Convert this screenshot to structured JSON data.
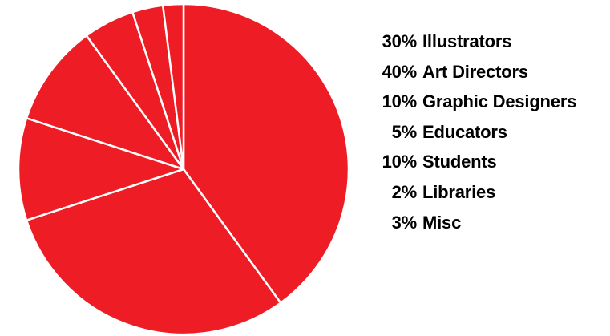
{
  "chart_data": {
    "type": "pie",
    "title": "",
    "legend_position": "right",
    "slice_color": "#ee1c25",
    "separator_color": "#ffffff",
    "background_color": "#ffffff",
    "text_color": "#000000",
    "start_angle_deg": 0,
    "direction": "clockwise",
    "slices": [
      {
        "label": "Art Directors",
        "percent_label": "40%",
        "value": 40
      },
      {
        "label": "Illustrators",
        "percent_label": "30%",
        "value": 30
      },
      {
        "label": "Graphic Designers",
        "percent_label": "10%",
        "value": 10
      },
      {
        "label": "Students",
        "percent_label": "10%",
        "value": 10
      },
      {
        "label": "Educators",
        "percent_label": "5%",
        "value": 5
      },
      {
        "label": "Misc",
        "percent_label": "3%",
        "value": 3
      },
      {
        "label": "Libraries",
        "percent_label": "2%",
        "value": 2
      }
    ],
    "legend": [
      {
        "percent": "30%",
        "label": "Illustrators"
      },
      {
        "percent": "40%",
        "label": "Art Directors"
      },
      {
        "percent": "10%",
        "label": "Graphic Designers"
      },
      {
        "percent": "5%",
        "label": "Educators"
      },
      {
        "percent": "10%",
        "label": "Students"
      },
      {
        "percent": "2%",
        "label": "Libraries"
      },
      {
        "percent": "3%",
        "label": "Misc"
      }
    ]
  }
}
